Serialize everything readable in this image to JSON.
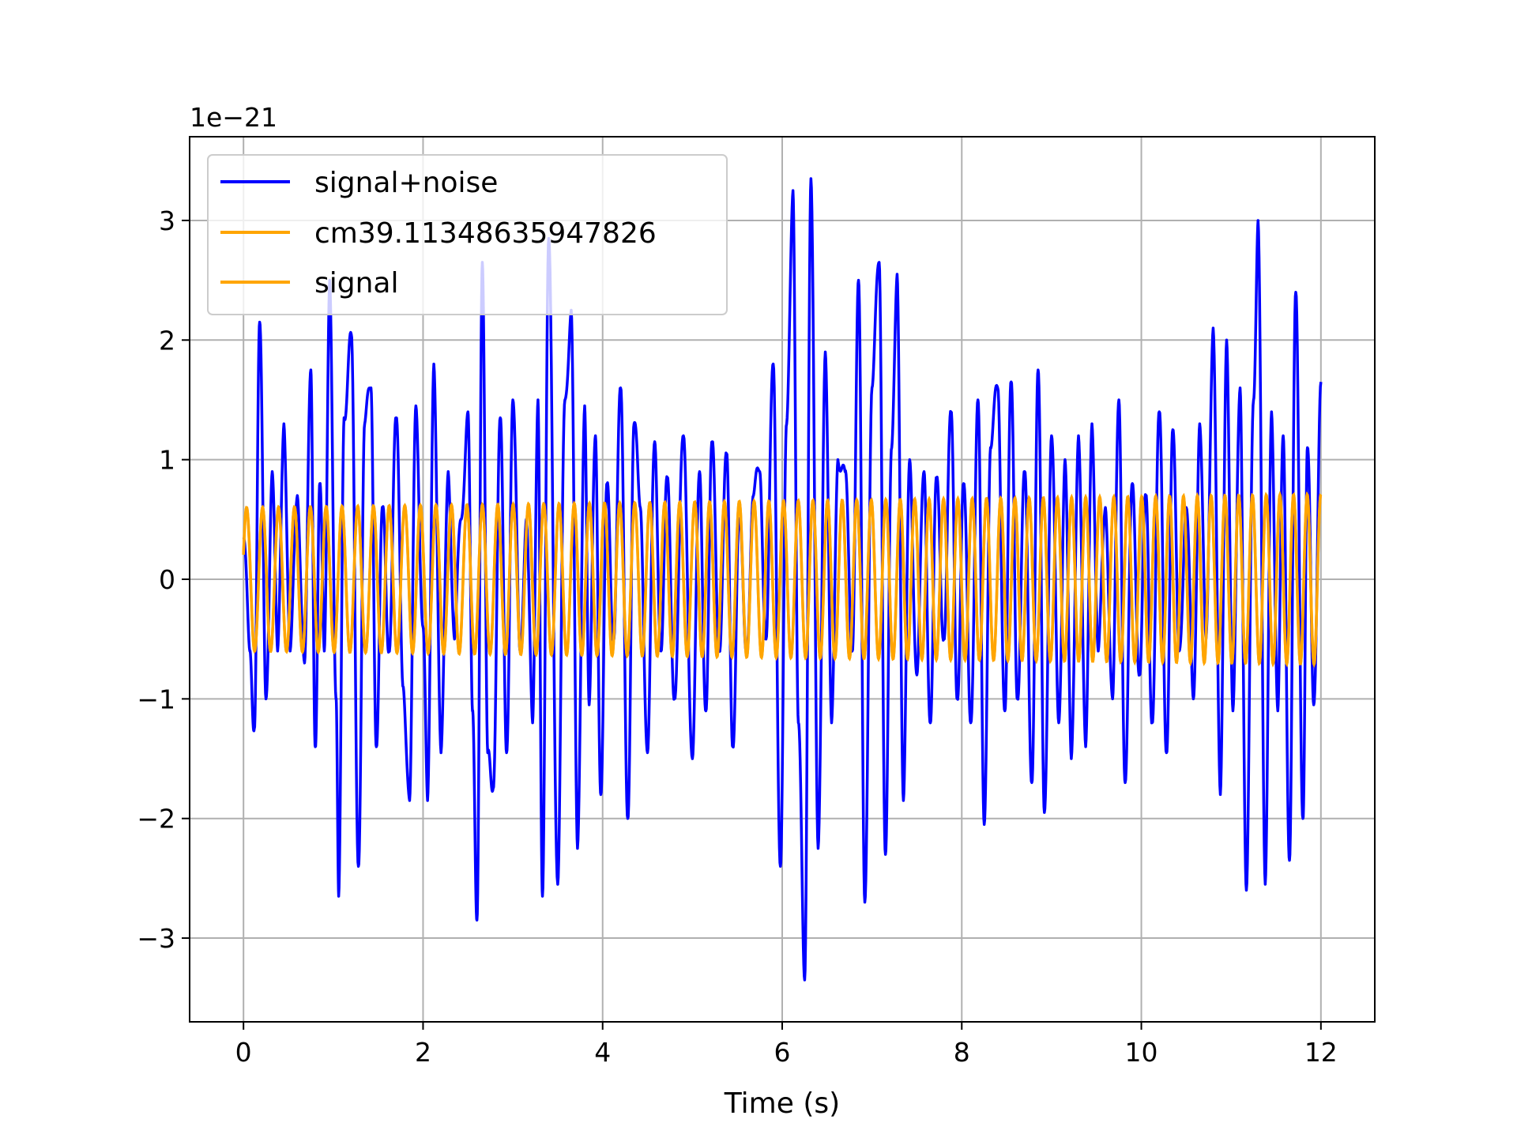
{
  "chart_data": {
    "type": "line",
    "title": "",
    "xlabel": "Time (s)",
    "ylabel": "",
    "y_offset_label": "1e−21",
    "xlim": [
      -0.6,
      12.6
    ],
    "ylim": [
      -3.7,
      3.7
    ],
    "x_ticks": [
      0,
      2,
      4,
      6,
      8,
      10,
      12
    ],
    "x_tick_labels": [
      "0",
      "2",
      "4",
      "6",
      "8",
      "10",
      "12"
    ],
    "y_ticks": [
      -3,
      -2,
      -1,
      0,
      1,
      2,
      3
    ],
    "y_tick_labels": [
      "−3",
      "−2",
      "−1",
      "0",
      "1",
      "2",
      "3"
    ],
    "grid": true,
    "legend": "top-left",
    "series": [
      {
        "name": "signal+noise",
        "color": "#0000ff",
        "x_range": [
          0,
          12
        ],
        "extrema": [
          [
            0.0,
            0.35
          ],
          [
            0.07,
            -0.6
          ],
          [
            0.12,
            -1.25
          ],
          [
            0.18,
            2.15
          ],
          [
            0.25,
            -1.0
          ],
          [
            0.32,
            0.9
          ],
          [
            0.38,
            -0.6
          ],
          [
            0.45,
            1.3
          ],
          [
            0.52,
            -0.6
          ],
          [
            0.6,
            0.7
          ],
          [
            0.68,
            -0.7
          ],
          [
            0.75,
            1.75
          ],
          [
            0.8,
            -1.4
          ],
          [
            0.85,
            0.8
          ],
          [
            0.9,
            -0.6
          ],
          [
            0.96,
            2.5
          ],
          [
            1.03,
            -1.0
          ],
          [
            1.06,
            -2.65
          ],
          [
            1.12,
            1.35
          ],
          [
            1.2,
            2.05
          ],
          [
            1.28,
            -2.4
          ],
          [
            1.35,
            1.3
          ],
          [
            1.42,
            1.6
          ],
          [
            1.48,
            -1.4
          ],
          [
            1.55,
            0.6
          ],
          [
            1.62,
            -0.6
          ],
          [
            1.7,
            1.35
          ],
          [
            1.78,
            -0.9
          ],
          [
            1.85,
            -1.85
          ],
          [
            1.92,
            1.45
          ],
          [
            2.0,
            -0.4
          ],
          [
            2.05,
            -1.85
          ],
          [
            2.12,
            1.8
          ],
          [
            2.2,
            -1.45
          ],
          [
            2.28,
            0.9
          ],
          [
            2.35,
            -0.5
          ],
          [
            2.42,
            0.5
          ],
          [
            2.5,
            1.4
          ],
          [
            2.55,
            -1.1
          ],
          [
            2.6,
            -2.85
          ],
          [
            2.66,
            2.65
          ],
          [
            2.72,
            -1.45
          ],
          [
            2.78,
            -1.75
          ],
          [
            2.86,
            1.35
          ],
          [
            2.93,
            -1.45
          ],
          [
            3.0,
            1.5
          ],
          [
            3.08,
            -0.6
          ],
          [
            3.15,
            0.5
          ],
          [
            3.22,
            -1.2
          ],
          [
            3.28,
            1.5
          ],
          [
            3.33,
            -2.65
          ],
          [
            3.4,
            2.85
          ],
          [
            3.5,
            -2.55
          ],
          [
            3.58,
            1.5
          ],
          [
            3.65,
            2.25
          ],
          [
            3.72,
            -2.25
          ],
          [
            3.8,
            1.45
          ],
          [
            3.85,
            -1.05
          ],
          [
            3.92,
            1.2
          ],
          [
            3.98,
            -1.8
          ],
          [
            4.05,
            0.8
          ],
          [
            4.12,
            -0.5
          ],
          [
            4.2,
            1.6
          ],
          [
            4.28,
            -2.0
          ],
          [
            4.35,
            1.3
          ],
          [
            4.42,
            0.6
          ],
          [
            4.5,
            -1.45
          ],
          [
            4.58,
            1.15
          ],
          [
            4.65,
            -0.6
          ],
          [
            4.72,
            0.85
          ],
          [
            4.8,
            -1.0
          ],
          [
            4.9,
            1.2
          ],
          [
            5.0,
            -1.5
          ],
          [
            5.08,
            0.9
          ],
          [
            5.15,
            -1.1
          ],
          [
            5.22,
            1.15
          ],
          [
            5.3,
            -0.6
          ],
          [
            5.38,
            1.05
          ],
          [
            5.45,
            -1.4
          ],
          [
            5.52,
            0.5
          ],
          [
            5.6,
            -0.6
          ],
          [
            5.68,
            0.7
          ],
          [
            5.75,
            0.9
          ],
          [
            5.82,
            -0.5
          ],
          [
            5.9,
            1.8
          ],
          [
            5.98,
            -2.4
          ],
          [
            6.05,
            1.3
          ],
          [
            6.12,
            3.25
          ],
          [
            6.18,
            -1.2
          ],
          [
            6.25,
            -3.35
          ],
          [
            6.32,
            3.35
          ],
          [
            6.4,
            -2.25
          ],
          [
            6.48,
            1.9
          ],
          [
            6.55,
            -1.2
          ],
          [
            6.62,
            1.0
          ],
          [
            6.7,
            0.9
          ],
          [
            6.78,
            -0.6
          ],
          [
            6.85,
            2.5
          ],
          [
            6.92,
            -2.7
          ],
          [
            7.0,
            1.6
          ],
          [
            7.08,
            2.65
          ],
          [
            7.15,
            -2.3
          ],
          [
            7.22,
            1.1
          ],
          [
            7.28,
            2.55
          ],
          [
            7.35,
            -1.85
          ],
          [
            7.42,
            1.0
          ],
          [
            7.5,
            -0.8
          ],
          [
            7.58,
            0.9
          ],
          [
            7.65,
            -1.2
          ],
          [
            7.72,
            0.85
          ],
          [
            7.8,
            -0.5
          ],
          [
            7.88,
            1.4
          ],
          [
            7.95,
            -1.0
          ],
          [
            8.02,
            0.8
          ],
          [
            8.1,
            -1.2
          ],
          [
            8.18,
            1.5
          ],
          [
            8.25,
            -2.05
          ],
          [
            8.32,
            1.1
          ],
          [
            8.4,
            1.6
          ],
          [
            8.48,
            -1.1
          ],
          [
            8.55,
            1.65
          ],
          [
            8.62,
            -1.0
          ],
          [
            8.7,
            0.9
          ],
          [
            8.78,
            -1.7
          ],
          [
            8.85,
            1.75
          ],
          [
            8.92,
            -1.95
          ],
          [
            9.0,
            1.2
          ],
          [
            9.08,
            -1.2
          ],
          [
            9.15,
            1.0
          ],
          [
            9.22,
            -1.5
          ],
          [
            9.3,
            1.2
          ],
          [
            9.38,
            -1.4
          ],
          [
            9.45,
            1.3
          ],
          [
            9.52,
            -0.6
          ],
          [
            9.6,
            0.6
          ],
          [
            9.68,
            -1.0
          ],
          [
            9.75,
            1.5
          ],
          [
            9.82,
            -1.7
          ],
          [
            9.9,
            0.8
          ],
          [
            9.98,
            -0.8
          ],
          [
            10.05,
            0.7
          ],
          [
            10.12,
            -1.2
          ],
          [
            10.2,
            1.4
          ],
          [
            10.28,
            -1.45
          ],
          [
            10.35,
            1.25
          ],
          [
            10.42,
            -0.6
          ],
          [
            10.5,
            0.6
          ],
          [
            10.58,
            -1.0
          ],
          [
            10.65,
            1.3
          ],
          [
            10.72,
            -0.5
          ],
          [
            10.8,
            2.1
          ],
          [
            10.88,
            -1.8
          ],
          [
            10.95,
            2.0
          ],
          [
            11.02,
            -1.1
          ],
          [
            11.1,
            1.6
          ],
          [
            11.17,
            -2.6
          ],
          [
            11.25,
            1.5
          ],
          [
            11.3,
            3.0
          ],
          [
            11.38,
            -2.55
          ],
          [
            11.45,
            1.4
          ],
          [
            11.52,
            -1.1
          ],
          [
            11.58,
            1.2
          ],
          [
            11.65,
            -2.35
          ],
          [
            11.72,
            2.4
          ],
          [
            11.8,
            -2.0
          ],
          [
            11.85,
            1.1
          ],
          [
            11.92,
            -1.05
          ],
          [
            12.0,
            1.65
          ]
        ]
      },
      {
        "name": "cm39.11348635947826",
        "color": "#ffa500",
        "x_range": [
          0,
          12
        ],
        "frequency_hz": [
          5.6,
          6.6
        ],
        "amplitude": [
          0.6,
          0.71
        ]
      },
      {
        "name": "signal",
        "color": "#ffa500",
        "x_range": [
          0,
          12
        ],
        "frequency_hz": [
          5.6,
          6.6
        ],
        "amplitude": [
          0.6,
          0.71
        ]
      }
    ]
  }
}
